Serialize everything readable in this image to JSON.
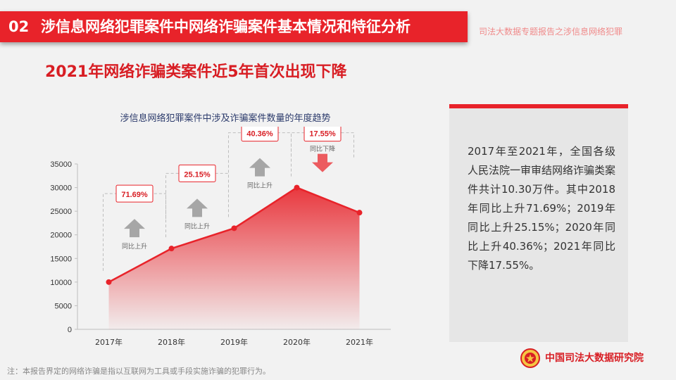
{
  "header": {
    "number": "02",
    "title": "涉信息网络犯罪案件中网络诈骗案件基本情况和特征分析"
  },
  "report_subtitle": "司法大数据专题报告之涉信息网络犯罪",
  "headline": "2021年网络诈骗类案件近5年首次出现下降",
  "chart_title": "涉信息网络犯罪案件中涉及诈骗案件数量的年度趋势",
  "chart_data": {
    "type": "area",
    "title": "涉信息网络犯罪案件中涉及诈骗案件数量的年度趋势",
    "categories": [
      "2017年",
      "2018年",
      "2019年",
      "2020年",
      "2021年"
    ],
    "values": [
      10000,
      17100,
      21400,
      30000,
      24700
    ],
    "ylim": [
      0,
      35000
    ],
    "yticks": [
      0,
      5000,
      10000,
      15000,
      20000,
      25000,
      30000,
      35000
    ],
    "grid": false,
    "annotations": [
      {
        "label": "71.69%",
        "note": "同比上升",
        "direction": "up"
      },
      {
        "label": "25.15%",
        "note": "同比上升",
        "direction": "up"
      },
      {
        "label": "40.36%",
        "note": "同比上升",
        "direction": "up"
      },
      {
        "label": "17.55%",
        "note": "同比下降",
        "direction": "down"
      }
    ],
    "colors": {
      "line": "#e8232a",
      "area": "#e8232a"
    }
  },
  "panel_text": "2017年至2021年，全国各级人民法院一审审结网络诈骗类案件共计10.30万件。其中2018年同比上升71.69%；2019年同比上升25.15%；2020年同比上升40.36%；2021年同比下降17.55%。",
  "footnote": "注：本报告界定的网络诈骗是指以互联网为工具或手段实施诈骗的犯罪行为。",
  "organization": "中国司法大数据研究院",
  "colors": {
    "brand_red": "#e8232a",
    "headline_red": "#d81e24",
    "background": "#f2f2f2"
  },
  "icons": {
    "emblem": "national-emblem-icon"
  }
}
